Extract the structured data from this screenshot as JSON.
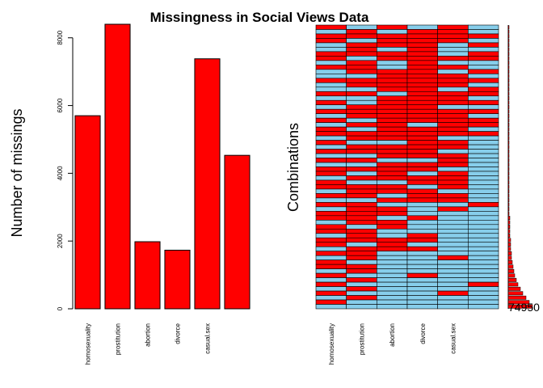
{
  "chart_data": [
    {
      "type": "bar",
      "title": "Missingness in Social Views Data",
      "xlabel": "",
      "ylabel": "Number of missings",
      "categories": [
        "homosexuality",
        "prostitution",
        "abortion",
        "divorce",
        "casual.sex",
        ""
      ],
      "values": [
        5700,
        8400,
        1980,
        1730,
        7380,
        4530
      ],
      "ylim": [
        0,
        8400
      ],
      "yticks": [
        0,
        2000,
        4000,
        6000,
        8000
      ],
      "grid": false,
      "bar_color": "#ff0000"
    },
    {
      "type": "heatmap",
      "xlabel": "",
      "ylabel": "Combinations",
      "columns": [
        "homosexuality",
        "prostitution",
        "abortion",
        "divorce",
        "casual.sex",
        ""
      ],
      "rows": 64,
      "missing_color": "#ff0000",
      "observed_color": "#87ceeb",
      "frequency_bars": [
        1,
        1,
        1,
        1,
        1,
        1,
        1,
        1,
        1,
        1,
        1,
        1,
        1,
        1,
        1,
        1,
        1,
        1,
        1,
        1,
        1,
        1,
        1,
        1,
        1,
        1,
        1,
        1,
        1,
        1,
        1,
        1,
        1,
        1,
        1,
        1,
        1,
        1,
        1,
        1,
        1,
        1,
        1,
        2,
        2,
        2,
        2,
        2,
        3,
        3,
        3,
        4,
        4,
        5,
        6,
        7,
        8,
        10,
        12,
        15,
        18,
        22,
        26,
        30
      ],
      "max_annotation": "74950",
      "pattern": [
        [
          1,
          0,
          1,
          0,
          1,
          0
        ],
        [
          0,
          1,
          0,
          1,
          1,
          0
        ],
        [
          1,
          1,
          1,
          1,
          1,
          1
        ],
        [
          1,
          0,
          1,
          1,
          1,
          0
        ],
        [
          0,
          1,
          1,
          1,
          0,
          1
        ],
        [
          0,
          1,
          0,
          1,
          0,
          0
        ],
        [
          1,
          1,
          1,
          1,
          0,
          1
        ],
        [
          1,
          0,
          1,
          1,
          1,
          1
        ],
        [
          0,
          1,
          0,
          1,
          0,
          0
        ],
        [
          1,
          1,
          0,
          1,
          1,
          0
        ],
        [
          0,
          1,
          1,
          1,
          0,
          1
        ],
        [
          0,
          0,
          1,
          1,
          1,
          0
        ],
        [
          1,
          1,
          1,
          1,
          1,
          1
        ],
        [
          0,
          1,
          1,
          1,
          1,
          0
        ],
        [
          0,
          0,
          1,
          1,
          0,
          1
        ],
        [
          1,
          1,
          0,
          1,
          1,
          1
        ],
        [
          0,
          0,
          1,
          1,
          1,
          0
        ],
        [
          1,
          0,
          1,
          1,
          1,
          1
        ],
        [
          0,
          1,
          1,
          1,
          0,
          0
        ],
        [
          1,
          1,
          1,
          1,
          1,
          1
        ],
        [
          0,
          1,
          1,
          1,
          1,
          0
        ],
        [
          1,
          0,
          1,
          1,
          1,
          1
        ],
        [
          0,
          1,
          1,
          0,
          1,
          1
        ],
        [
          1,
          0,
          1,
          1,
          1,
          0
        ],
        [
          1,
          1,
          1,
          1,
          1,
          1
        ],
        [
          0,
          1,
          1,
          1,
          0,
          0
        ],
        [
          1,
          0,
          0,
          1,
          1,
          0
        ],
        [
          0,
          1,
          1,
          1,
          1,
          0
        ],
        [
          1,
          1,
          1,
          1,
          0,
          0
        ],
        [
          0,
          0,
          1,
          1,
          1,
          0
        ],
        [
          1,
          1,
          0,
          0,
          1,
          0
        ],
        [
          0,
          0,
          1,
          1,
          1,
          0
        ],
        [
          1,
          1,
          1,
          1,
          0,
          0
        ],
        [
          1,
          0,
          1,
          0,
          1,
          0
        ],
        [
          0,
          1,
          1,
          1,
          1,
          0
        ],
        [
          1,
          0,
          0,
          1,
          1,
          0
        ],
        [
          1,
          1,
          1,
          0,
          1,
          0
        ],
        [
          0,
          1,
          1,
          1,
          0,
          0
        ],
        [
          1,
          1,
          0,
          1,
          1,
          0
        ],
        [
          0,
          0,
          1,
          1,
          1,
          0
        ],
        [
          1,
          1,
          0,
          0,
          0,
          1
        ],
        [
          0,
          1,
          1,
          0,
          1,
          0
        ],
        [
          1,
          1,
          1,
          0,
          0,
          0
        ],
        [
          1,
          1,
          0,
          1,
          0,
          0
        ],
        [
          0,
          1,
          1,
          0,
          0,
          0
        ],
        [
          1,
          0,
          1,
          0,
          0,
          0
        ],
        [
          1,
          1,
          0,
          0,
          0,
          0
        ],
        [
          0,
          1,
          0,
          1,
          0,
          0
        ],
        [
          1,
          1,
          1,
          1,
          0,
          0
        ],
        [
          1,
          0,
          1,
          0,
          0,
          0
        ],
        [
          0,
          1,
          1,
          1,
          0,
          0
        ],
        [
          1,
          1,
          0,
          0,
          0,
          0
        ],
        [
          0,
          1,
          0,
          0,
          1,
          0
        ],
        [
          1,
          0,
          0,
          0,
          0,
          0
        ],
        [
          1,
          1,
          0,
          0,
          0,
          0
        ],
        [
          0,
          1,
          0,
          0,
          0,
          0
        ],
        [
          1,
          0,
          0,
          1,
          0,
          0
        ],
        [
          0,
          1,
          0,
          0,
          0,
          0
        ],
        [
          1,
          0,
          0,
          0,
          0,
          1
        ],
        [
          0,
          1,
          0,
          0,
          0,
          0
        ],
        [
          1,
          0,
          0,
          0,
          1,
          0
        ],
        [
          0,
          1,
          0,
          0,
          0,
          0
        ],
        [
          1,
          0,
          0,
          0,
          0,
          0
        ],
        [
          0,
          0,
          0,
          0,
          0,
          0
        ]
      ]
    }
  ]
}
